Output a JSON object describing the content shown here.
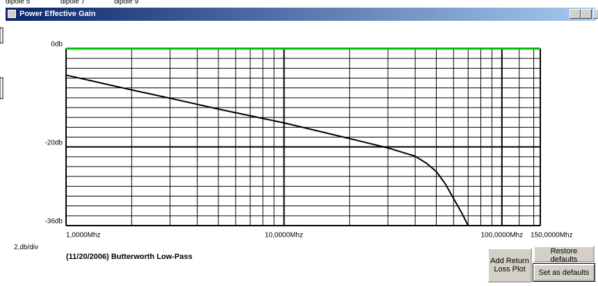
{
  "top_tabs": [
    "dipole 5",
    "dipole 7",
    "dipole 9"
  ],
  "window": {
    "title": "Power Effective Gain"
  },
  "scale_label": "2,db/div",
  "plot_caption": "(11/20/2006) Butterworth Low-Pass",
  "buttons": [
    "Add Return Loss Plot",
    "Restore defaults",
    "Set as defaults"
  ],
  "chart_data": {
    "type": "line",
    "x_log": true,
    "xlim": [
      1,
      150
    ],
    "xticks": [
      {
        "value": 1,
        "label": "1,0000Mhz"
      },
      {
        "value": 10,
        "label": "10,0000Mhz"
      },
      {
        "value": 100,
        "label": "100,0000Mhz"
      },
      {
        "value": 150,
        "label": "150,0000Mhz"
      }
    ],
    "xgrid": [
      2,
      3,
      4,
      5,
      6,
      7,
      8,
      9,
      20,
      30,
      40,
      50,
      60,
      70,
      80,
      90,
      120,
      140
    ],
    "ylim": [
      -36,
      0
    ],
    "yticks": [
      {
        "value": 0,
        "label": "0db"
      },
      {
        "value": -20,
        "label": "-20db"
      },
      {
        "value": -36,
        "label": "-36db"
      }
    ],
    "ygrid": [
      -2,
      -4,
      -6,
      -8,
      -10,
      -12,
      -14,
      -16,
      -18,
      -22,
      -24,
      -26,
      -28,
      -30,
      -32,
      -34
    ],
    "ref_line_color": "#00c000",
    "series": [
      {
        "color": "#000000",
        "x": [
          1,
          2,
          3,
          5,
          10,
          20,
          30,
          40,
          45,
          50,
          55,
          60,
          65,
          70
        ],
        "values": [
          -5.4,
          -8.4,
          -10.1,
          -12.3,
          -15.1,
          -18.3,
          -20.2,
          -21.9,
          -23.3,
          -25.0,
          -27.5,
          -30.5,
          -33.2,
          -36
        ]
      }
    ]
  }
}
